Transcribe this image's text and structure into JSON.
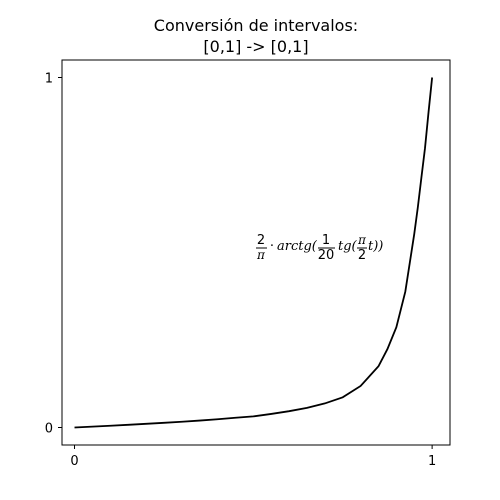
{
  "chart_data": {
    "type": "line",
    "title_line1": "Conversión de intervalos:",
    "title_line2": "[0,1] -> [0,1]",
    "xlabel": "",
    "ylabel": "",
    "xlim": [
      -0.035,
      1.05
    ],
    "ylim": [
      -0.05,
      1.05
    ],
    "x_ticks": [
      0,
      1
    ],
    "x_tick_labels": [
      "0",
      "1"
    ],
    "y_ticks": [
      0,
      1
    ],
    "y_tick_labels": [
      "0",
      "1"
    ],
    "grid": false,
    "legend": "none",
    "line_color": "#000000",
    "function": "y = (2/π)·arctg((1/20)·tg((π/2)·t)), t ∈ [0,1]",
    "series": [
      {
        "x": [
          0,
          0.05,
          0.1,
          0.15,
          0.2,
          0.25,
          0.3,
          0.35,
          0.4,
          0.45,
          0.5,
          0.55,
          0.6,
          0.65,
          0.7,
          0.75,
          0.8,
          0.85,
          0.875,
          0.9,
          0.925,
          0.95,
          0.96,
          0.97,
          0.98,
          0.99,
          1
        ],
        "y": [
          0,
          0.0025,
          0.005,
          0.0077,
          0.0105,
          0.0134,
          0.0165,
          0.0199,
          0.0236,
          0.0278,
          0.0317,
          0.0387,
          0.0466,
          0.0562,
          0.0688,
          0.0863,
          0.1186,
          0.175,
          0.224,
          0.2864,
          0.388,
          0.5527,
          0.629,
          0.714,
          0.7975,
          0.901,
          1
        ]
      }
    ],
    "annotation": {
      "frac1_num": "2",
      "frac1_den": "π",
      "dot": "·",
      "func1": "arctg(",
      "frac2_num": "1",
      "frac2_den": "20",
      "func2": "tg(",
      "frac3_num": "π",
      "frac3_den": "2",
      "tail": "t))"
    }
  }
}
